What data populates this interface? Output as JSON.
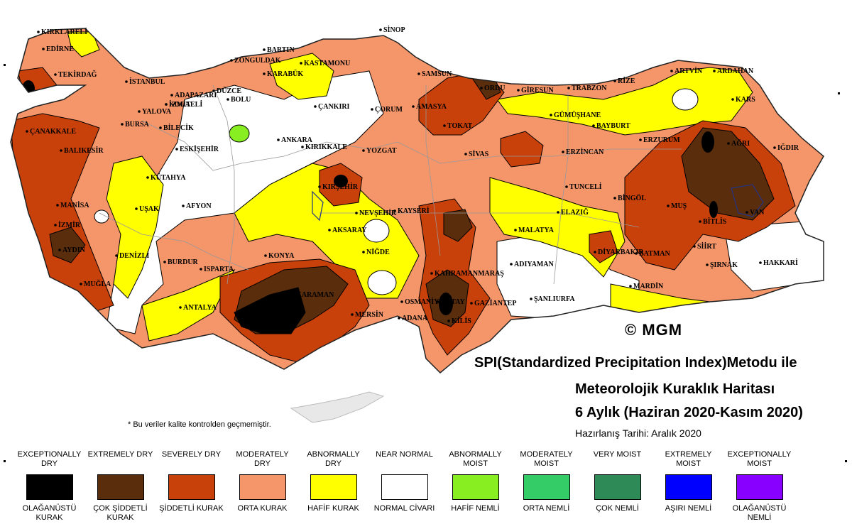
{
  "title": {
    "line1": "SPI(Standardized Precipitation Index)Metodu ile",
    "line2": "Meteorolojik Kuraklık Haritası",
    "line3": "6 Aylık (Haziran 2020-Kasım 2020)",
    "prepared": "Hazırlanış Tarihi: Aralık 2020"
  },
  "footnote": "* Bu veriler kalite kontrolden geçmemiştir.",
  "copyright": "© MGM",
  "colors": {
    "exceptionally_dry": "#000000",
    "extremely_dry": "#5a2d0c",
    "severely_dry": "#c8400a",
    "moderately_dry": "#f4956a",
    "abnormally_dry": "#ffff00",
    "near_normal": "#ffffff",
    "abnormally_moist": "#88ee22",
    "moderately_moist": "#33cc66",
    "very_moist": "#2e8b57",
    "extremely_moist": "#0000ff",
    "exceptionally_moist": "#8800ff"
  },
  "legend": [
    {
      "en": "EXCEPTIONALLY DRY",
      "tr": "OLAĞANÜSTÜ KURAK",
      "color": "#000000"
    },
    {
      "en": "EXTREMELY DRY",
      "tr": "ÇOK ŞİDDETLİ KURAK",
      "color": "#5a2d0c"
    },
    {
      "en": "SEVERELY DRY",
      "tr": "ŞİDDETLİ KURAK",
      "color": "#c8400a"
    },
    {
      "en": "MODERATELY DRY",
      "tr": "ORTA KURAK",
      "color": "#f4956a"
    },
    {
      "en": "ABNORMALLY DRY",
      "tr": "HAFİF KURAK",
      "color": "#ffff00"
    },
    {
      "en": "NEAR NORMAL",
      "tr": "NORMAL CİVARI",
      "color": "#ffffff"
    },
    {
      "en": "ABNORMALLY MOIST",
      "tr": "HAFİF NEMLİ",
      "color": "#88ee22"
    },
    {
      "en": "MODERATELY MOIST",
      "tr": "ORTA NEMLİ",
      "color": "#33cc66"
    },
    {
      "en": "VERY MOIST",
      "tr": "ÇOK NEMLİ",
      "color": "#2e8b57"
    },
    {
      "en": "EXTREMELY MOIST",
      "tr": "AŞIRI NEMLİ",
      "color": "#0000ff"
    },
    {
      "en": "EXCEPTIONALLY MOIST",
      "tr": "OLAĞANÜSTÜ NEMLİ",
      "color": "#8800ff"
    }
  ],
  "cities": [
    "KIRKLARELİ",
    "EDİRNE",
    "TEKİRDAĞ",
    "İSTANBUL",
    "ÇANAKKALE",
    "BALIKESİR",
    "BURSA",
    "YALOVA",
    "KOCAELİ",
    "İZMİT",
    "ADAPAZARI",
    "DÜZCE",
    "BOLU",
    "BİLECİK",
    "ESKİŞEHİR",
    "KÜTAHYA",
    "MANİSA",
    "İZMİR",
    "AYDIN",
    "MUĞLA",
    "DENİZLİ",
    "UŞAK",
    "AFYON",
    "BURDUR",
    "ISPARTA",
    "ANTALYA",
    "KONYA",
    "KARAMAN",
    "MERSİN",
    "ADANA",
    "OSMANİYE",
    "HATAY",
    "KİLİS",
    "GAZİANTEP",
    "KAHRAMANMARAŞ",
    "ADIYAMAN",
    "ŞANLIURFA",
    "MARDİN",
    "DİYARBAKIR",
    "BATMAN",
    "SİİRT",
    "ŞIRNAK",
    "HAKKARİ",
    "VAN",
    "BİTLİS",
    "MUŞ",
    "BİNGÖL",
    "ELAZIĞ",
    "TUNCELİ",
    "MALATYA",
    "ERZİNCAN",
    "ERZURUM",
    "AĞRI",
    "IĞDIR",
    "KARS",
    "ARDAHAN",
    "ARTVİN",
    "RİZE",
    "TRABZON",
    "GÜMÜŞHANE",
    "BAYBURT",
    "GİRESUN",
    "ORDU",
    "SAMSUN",
    "AMASYA",
    "TOKAT",
    "SİVAS",
    "YOZGAT",
    "ÇORUM",
    "KIRIKKALE",
    "KIRŞEHİR",
    "NEVŞEHİR",
    "AKSARAY",
    "NİĞDE",
    "KAYSERİ",
    "ANKARA",
    "ÇANKIRI",
    "KASTAMONU",
    "KARABÜK",
    "BARTIN",
    "ZONGULDAK",
    "SİNOP"
  ]
}
